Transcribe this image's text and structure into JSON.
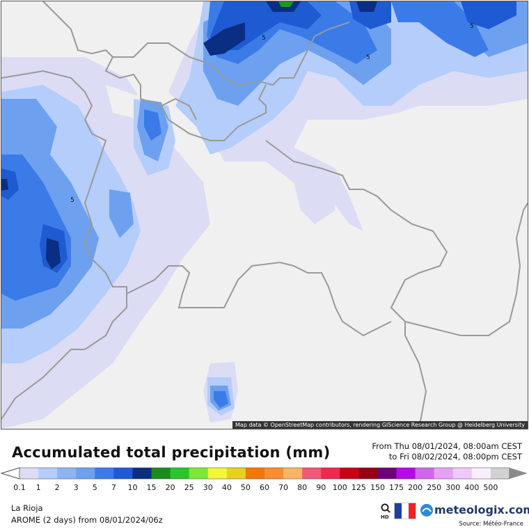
{
  "map": {
    "attribution": "Map data © OpenStreetMap contributors, rendering GIScience Research Group @ Heidelberg University",
    "contour_label": "5",
    "colors": {
      "background": "#f0f0f0",
      "border": "#999999",
      "lavender": "#dcdcf4",
      "light_blue": "#b4cdfa",
      "mid_blue": "#6ea0f0",
      "blue": "#3a7be8",
      "strong_blue": "#1e5ad2",
      "dark_blue": "#0a2e82",
      "green": "#1a9a1a"
    }
  },
  "header": {
    "title": "Accumulated total precipitation (mm)",
    "from": "From Thu 08/01/2024, 08:00am CEST",
    "to": "to Fri 08/02/2024, 08:00pm CEST"
  },
  "legend": {
    "labels": [
      "0.1",
      "1",
      "2",
      "3",
      "5",
      "7",
      "10",
      "15",
      "20",
      "25",
      "30",
      "40",
      "50",
      "60",
      "70",
      "80",
      "90",
      "100",
      "125",
      "150",
      "175",
      "200",
      "250",
      "300",
      "400",
      "500"
    ],
    "colors": [
      "#dcdcf4",
      "#b4cdfa",
      "#8cb4f5",
      "#6ea0f0",
      "#3a7be8",
      "#1e5ad2",
      "#0a2e82",
      "#1a8c1a",
      "#2cc42c",
      "#7ae83a",
      "#f5f53a",
      "#e6d21e",
      "#f0780a",
      "#fa8c32",
      "#fab464",
      "#f05a78",
      "#f0284b",
      "#c80014",
      "#960014",
      "#6e0078",
      "#b40ae6",
      "#d264f0",
      "#e6a0f5",
      "#f0c8fa",
      "#f8eefc",
      "#d2d2d2"
    ]
  },
  "footer": {
    "region": "La Rioja",
    "model": "AROME (2 days) from 08/01/2024/06z",
    "brand": "meteologix.com",
    "source": "Source: Météo-France"
  }
}
